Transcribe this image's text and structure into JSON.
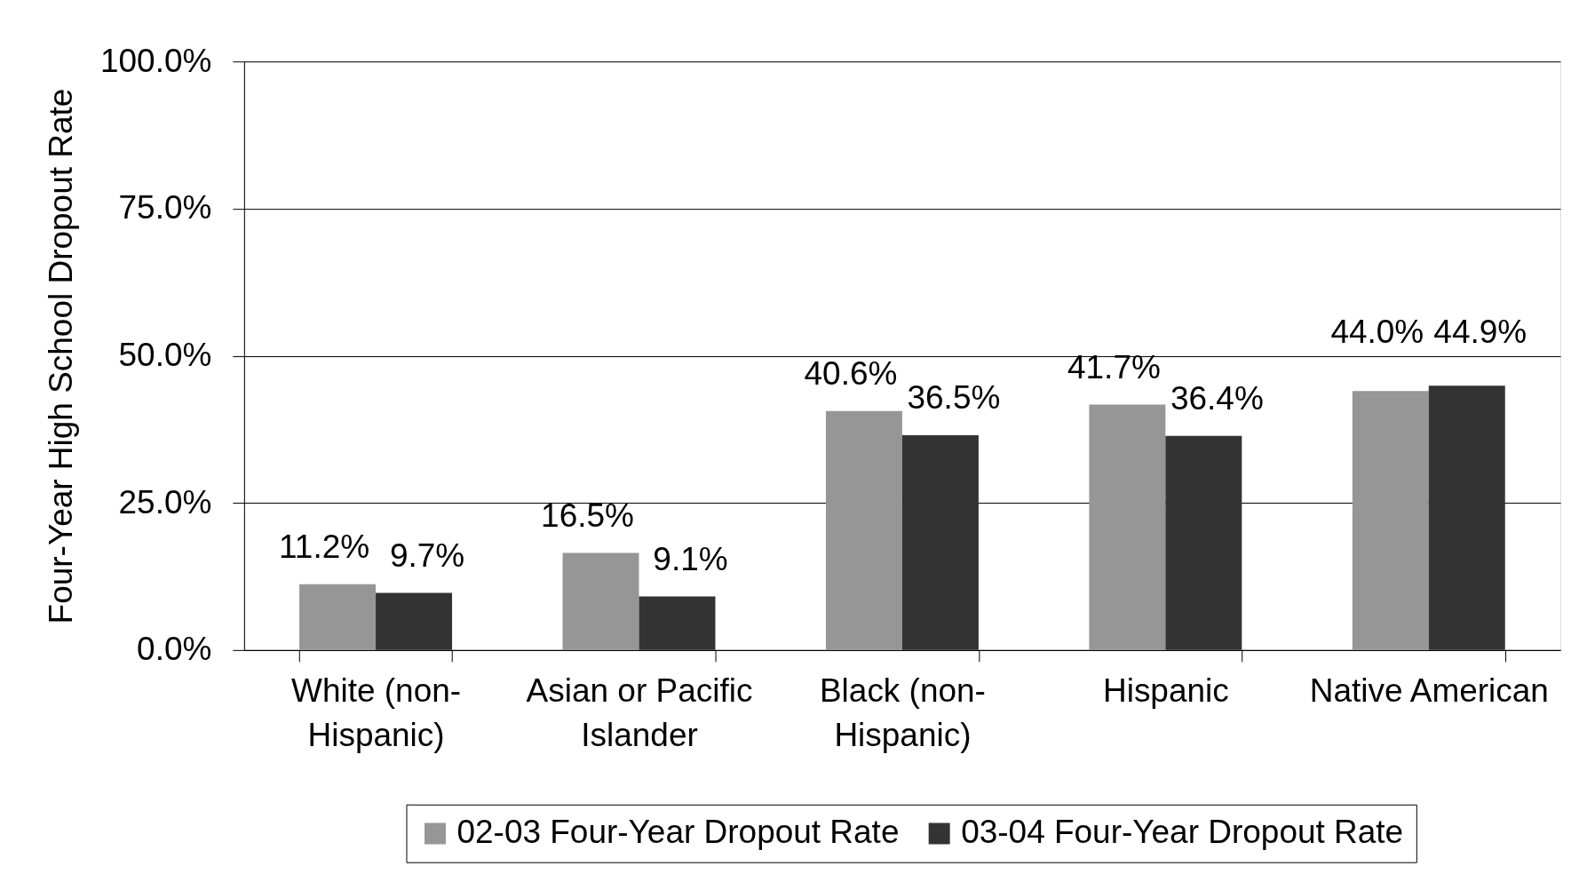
{
  "chart_data": {
    "type": "bar",
    "ylabel": "Four-Year High School Dropout Rate",
    "categories": [
      "White (non-Hispanic)",
      "Asian or Pacific Islander",
      "Black (non-Hispanic)",
      "Hispanic",
      "Native American"
    ],
    "series": [
      {
        "name": "02-03 Four-Year Dropout Rate",
        "color": "#969696",
        "values": [
          11.2,
          16.5,
          40.6,
          41.7,
          44.0
        ],
        "value_labels": [
          "11.2%",
          "16.5%",
          "40.6%",
          "41.7%",
          "44.0%"
        ]
      },
      {
        "name": "03-04 Four-Year Dropout Rate",
        "color": "#333333",
        "values": [
          9.7,
          9.1,
          36.5,
          36.4,
          44.9
        ],
        "value_labels": [
          "9.7%",
          "9.1%",
          "36.5%",
          "36.4%",
          "44.9%"
        ]
      }
    ],
    "ylim": [
      0,
      100
    ],
    "yticks": [
      {
        "value": 0,
        "label": "0.0%"
      },
      {
        "value": 25,
        "label": "25.0%"
      },
      {
        "value": 50,
        "label": "50.0%"
      },
      {
        "value": 75,
        "label": "75.0%"
      },
      {
        "value": 100,
        "label": "100.0%"
      }
    ],
    "grid": "y",
    "legend": "bottom"
  }
}
